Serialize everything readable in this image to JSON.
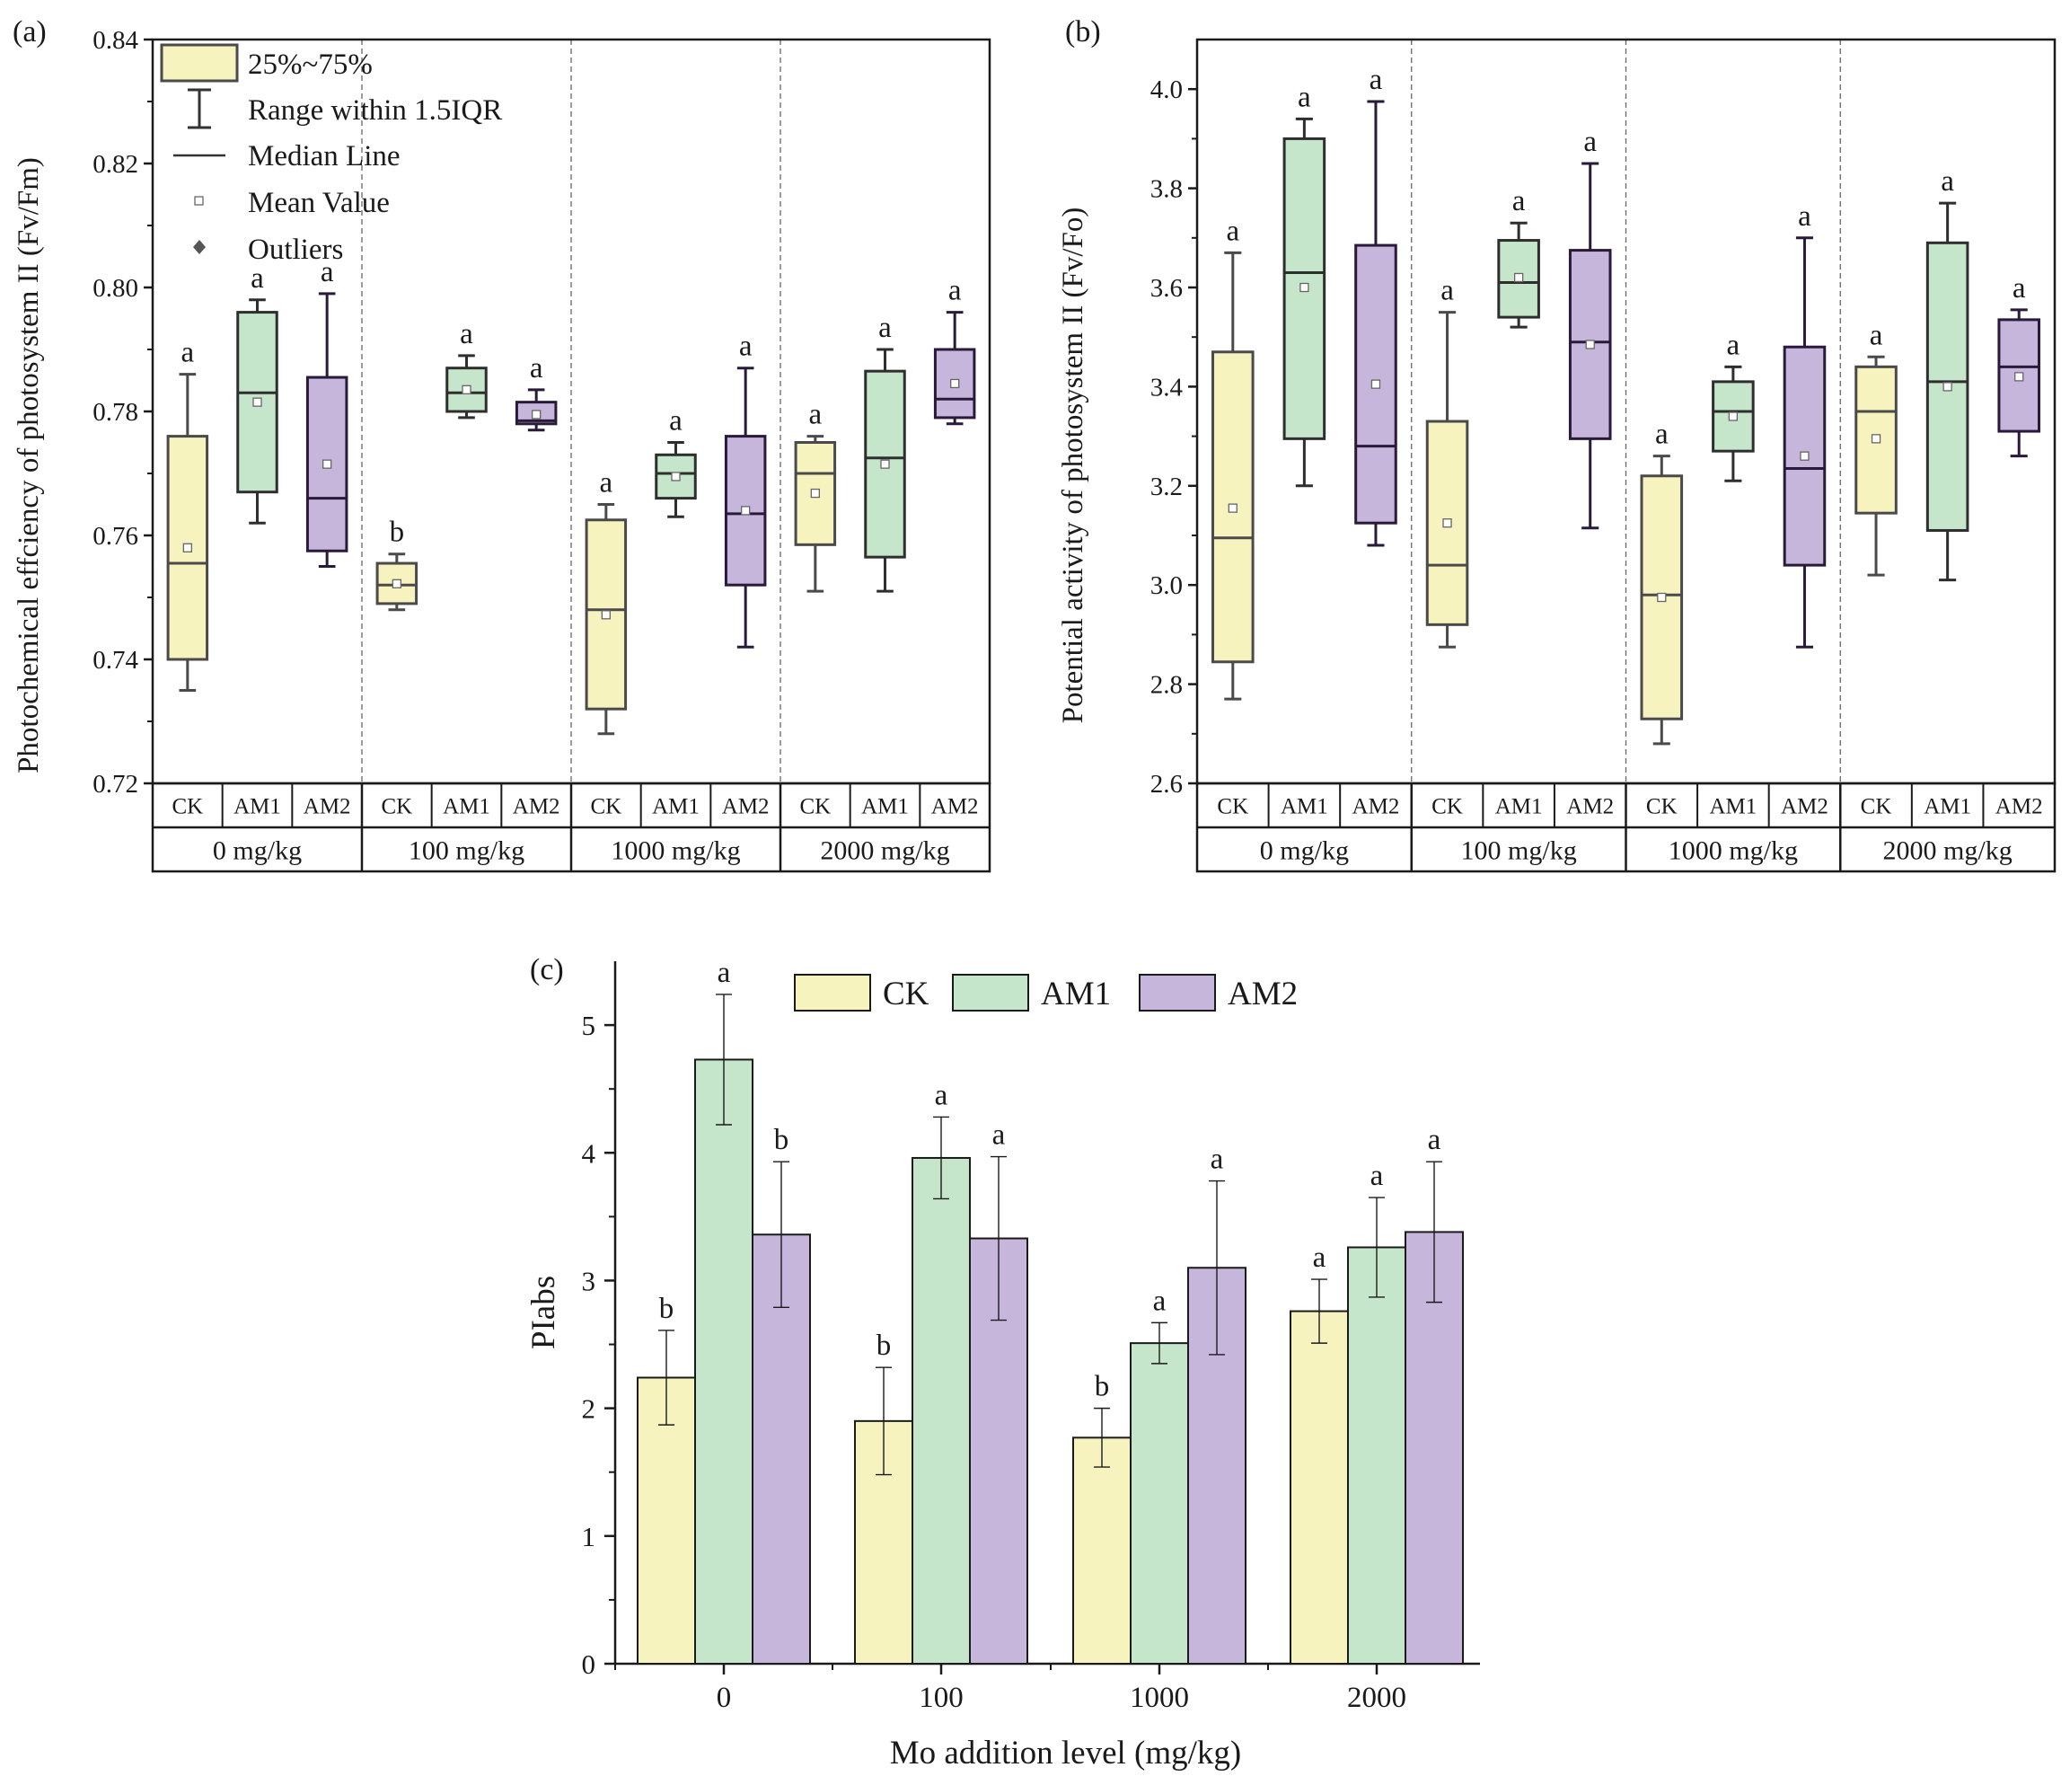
{
  "colors": {
    "CK": "#f6f3bf",
    "AM1": "#c6e6cb",
    "AM2": "#c6b6dc",
    "CK_stroke": "#4a4a4a",
    "AM1_stroke": "#2e2e2e",
    "AM2_stroke": "#2a1a3a",
    "axis": "#1a1a1a"
  },
  "chart_data": [
    {
      "type": "box",
      "panel_label": "(a)",
      "ylabel": "Photochemical effciency of photosystem II (Fv/Fm)",
      "ylim": [
        0.72,
        0.84
      ],
      "yticks": [
        "0.72",
        "0.74",
        "0.76",
        "0.78",
        "0.80",
        "0.82",
        "0.84"
      ],
      "groups": [
        "0 mg/kg",
        "100 mg/kg",
        "1000 mg/kg",
        "2000 mg/kg"
      ],
      "treatments": [
        "CK",
        "AM1",
        "AM2"
      ],
      "legend": {
        "box": "25%~75%",
        "range": "Range within 1.5IQR",
        "median": "Median Line",
        "mean": "Mean Value",
        "outliers": "Outliers"
      },
      "boxes": [
        {
          "group": "0 mg/kg",
          "treatment": "CK",
          "min": 0.735,
          "q1": 0.74,
          "median": 0.7555,
          "q3": 0.776,
          "max": 0.786,
          "mean": 0.758,
          "letter": "a"
        },
        {
          "group": "0 mg/kg",
          "treatment": "AM1",
          "min": 0.762,
          "q1": 0.767,
          "median": 0.783,
          "q3": 0.796,
          "max": 0.798,
          "mean": 0.7815,
          "letter": "a"
        },
        {
          "group": "0 mg/kg",
          "treatment": "AM2",
          "min": 0.755,
          "q1": 0.7575,
          "median": 0.766,
          "q3": 0.7855,
          "max": 0.799,
          "mean": 0.7715,
          "letter": "a"
        },
        {
          "group": "100 mg/kg",
          "treatment": "CK",
          "min": 0.748,
          "q1": 0.749,
          "median": 0.752,
          "q3": 0.7555,
          "max": 0.757,
          "mean": 0.7522,
          "letter": "b"
        },
        {
          "group": "100 mg/kg",
          "treatment": "AM1",
          "min": 0.779,
          "q1": 0.78,
          "median": 0.783,
          "q3": 0.787,
          "max": 0.789,
          "mean": 0.7835,
          "letter": "a"
        },
        {
          "group": "100 mg/kg",
          "treatment": "AM2",
          "min": 0.777,
          "q1": 0.778,
          "median": 0.7785,
          "q3": 0.7815,
          "max": 0.7835,
          "mean": 0.7795,
          "letter": "a"
        },
        {
          "group": "1000 mg/kg",
          "treatment": "CK",
          "min": 0.728,
          "q1": 0.732,
          "median": 0.748,
          "q3": 0.7625,
          "max": 0.765,
          "mean": 0.7472,
          "letter": "a"
        },
        {
          "group": "1000 mg/kg",
          "treatment": "AM1",
          "min": 0.763,
          "q1": 0.766,
          "median": 0.77,
          "q3": 0.773,
          "max": 0.775,
          "mean": 0.7695,
          "letter": "a"
        },
        {
          "group": "1000 mg/kg",
          "treatment": "AM2",
          "min": 0.742,
          "q1": 0.752,
          "median": 0.7635,
          "q3": 0.776,
          "max": 0.787,
          "mean": 0.764,
          "letter": "a"
        },
        {
          "group": "2000 mg/kg",
          "treatment": "CK",
          "min": 0.751,
          "q1": 0.7585,
          "median": 0.77,
          "q3": 0.775,
          "max": 0.776,
          "mean": 0.7668,
          "letter": "a"
        },
        {
          "group": "2000 mg/kg",
          "treatment": "AM1",
          "min": 0.751,
          "q1": 0.7565,
          "median": 0.7725,
          "q3": 0.7865,
          "max": 0.79,
          "mean": 0.7715,
          "letter": "a"
        },
        {
          "group": "2000 mg/kg",
          "treatment": "AM2",
          "min": 0.778,
          "q1": 0.779,
          "median": 0.782,
          "q3": 0.79,
          "max": 0.796,
          "mean": 0.7845,
          "letter": "a"
        }
      ]
    },
    {
      "type": "box",
      "panel_label": "(b)",
      "ylabel": "Potential activity of photosystem II (Fv/Fo)",
      "ylim": [
        2.6,
        4.1
      ],
      "yticks": [
        "2.6",
        "2.8",
        "3.0",
        "3.2",
        "3.4",
        "3.6",
        "3.8",
        "4.0"
      ],
      "groups": [
        "0 mg/kg",
        "100 mg/kg",
        "1000 mg/kg",
        "2000 mg/kg"
      ],
      "treatments": [
        "CK",
        "AM1",
        "AM2"
      ],
      "boxes": [
        {
          "group": "0 mg/kg",
          "treatment": "CK",
          "min": 2.77,
          "q1": 2.845,
          "median": 3.095,
          "q3": 3.47,
          "max": 3.67,
          "mean": 3.155,
          "letter": "a"
        },
        {
          "group": "0 mg/kg",
          "treatment": "AM1",
          "min": 3.2,
          "q1": 3.295,
          "median": 3.63,
          "q3": 3.9,
          "max": 3.94,
          "mean": 3.6,
          "letter": "a"
        },
        {
          "group": "0 mg/kg",
          "treatment": "AM2",
          "min": 3.08,
          "q1": 3.125,
          "median": 3.28,
          "q3": 3.685,
          "max": 3.975,
          "mean": 3.405,
          "letter": "a"
        },
        {
          "group": "100 mg/kg",
          "treatment": "CK",
          "min": 2.875,
          "q1": 2.92,
          "median": 3.04,
          "q3": 3.33,
          "max": 3.55,
          "mean": 3.125,
          "letter": "a"
        },
        {
          "group": "100 mg/kg",
          "treatment": "AM1",
          "min": 3.52,
          "q1": 3.54,
          "median": 3.61,
          "q3": 3.695,
          "max": 3.73,
          "mean": 3.62,
          "letter": "a"
        },
        {
          "group": "100 mg/kg",
          "treatment": "AM2",
          "min": 3.115,
          "q1": 3.295,
          "median": 3.49,
          "q3": 3.675,
          "max": 3.85,
          "mean": 3.485,
          "letter": "a"
        },
        {
          "group": "1000 mg/kg",
          "treatment": "CK",
          "min": 2.68,
          "q1": 2.73,
          "median": 2.98,
          "q3": 3.22,
          "max": 3.26,
          "mean": 2.975,
          "letter": "a"
        },
        {
          "group": "1000 mg/kg",
          "treatment": "AM1",
          "min": 3.21,
          "q1": 3.27,
          "median": 3.35,
          "q3": 3.41,
          "max": 3.44,
          "mean": 3.34,
          "letter": "a"
        },
        {
          "group": "1000 mg/kg",
          "treatment": "AM2",
          "min": 2.875,
          "q1": 3.04,
          "median": 3.235,
          "q3": 3.48,
          "max": 3.7,
          "mean": 3.26,
          "letter": "a"
        },
        {
          "group": "2000 mg/kg",
          "treatment": "CK",
          "min": 3.02,
          "q1": 3.145,
          "median": 3.35,
          "q3": 3.44,
          "max": 3.46,
          "mean": 3.295,
          "letter": "a"
        },
        {
          "group": "2000 mg/kg",
          "treatment": "AM1",
          "min": 3.01,
          "q1": 3.11,
          "median": 3.41,
          "q3": 3.69,
          "max": 3.77,
          "mean": 3.4,
          "letter": "a"
        },
        {
          "group": "2000 mg/kg",
          "treatment": "AM2",
          "min": 3.26,
          "q1": 3.31,
          "median": 3.44,
          "q3": 3.535,
          "max": 3.555,
          "mean": 3.42,
          "letter": "a"
        }
      ]
    },
    {
      "type": "bar",
      "panel_label": "(c)",
      "xlabel": "Mo addition level (mg/kg)",
      "ylabel": "PIabs",
      "ylim": [
        0,
        5.5
      ],
      "yticks": [
        "0",
        "1",
        "2",
        "3",
        "4",
        "5"
      ],
      "categories": [
        "0",
        "100",
        "1000",
        "2000"
      ],
      "series": [
        {
          "name": "CK",
          "values": [
            2.24,
            1.9,
            1.77,
            2.76
          ],
          "errors": [
            0.37,
            0.42,
            0.23,
            0.25
          ],
          "letters": [
            "b",
            "b",
            "b",
            "a"
          ]
        },
        {
          "name": "AM1",
          "values": [
            4.73,
            3.96,
            2.51,
            3.26
          ],
          "errors": [
            0.51,
            0.32,
            0.16,
            0.39
          ],
          "letters": [
            "a",
            "a",
            "a",
            "a"
          ]
        },
        {
          "name": "AM2",
          "values": [
            3.36,
            3.33,
            3.1,
            3.38
          ],
          "errors": [
            0.57,
            0.64,
            0.68,
            0.55
          ],
          "letters": [
            "b",
            "a",
            "a",
            "a"
          ]
        }
      ]
    }
  ]
}
